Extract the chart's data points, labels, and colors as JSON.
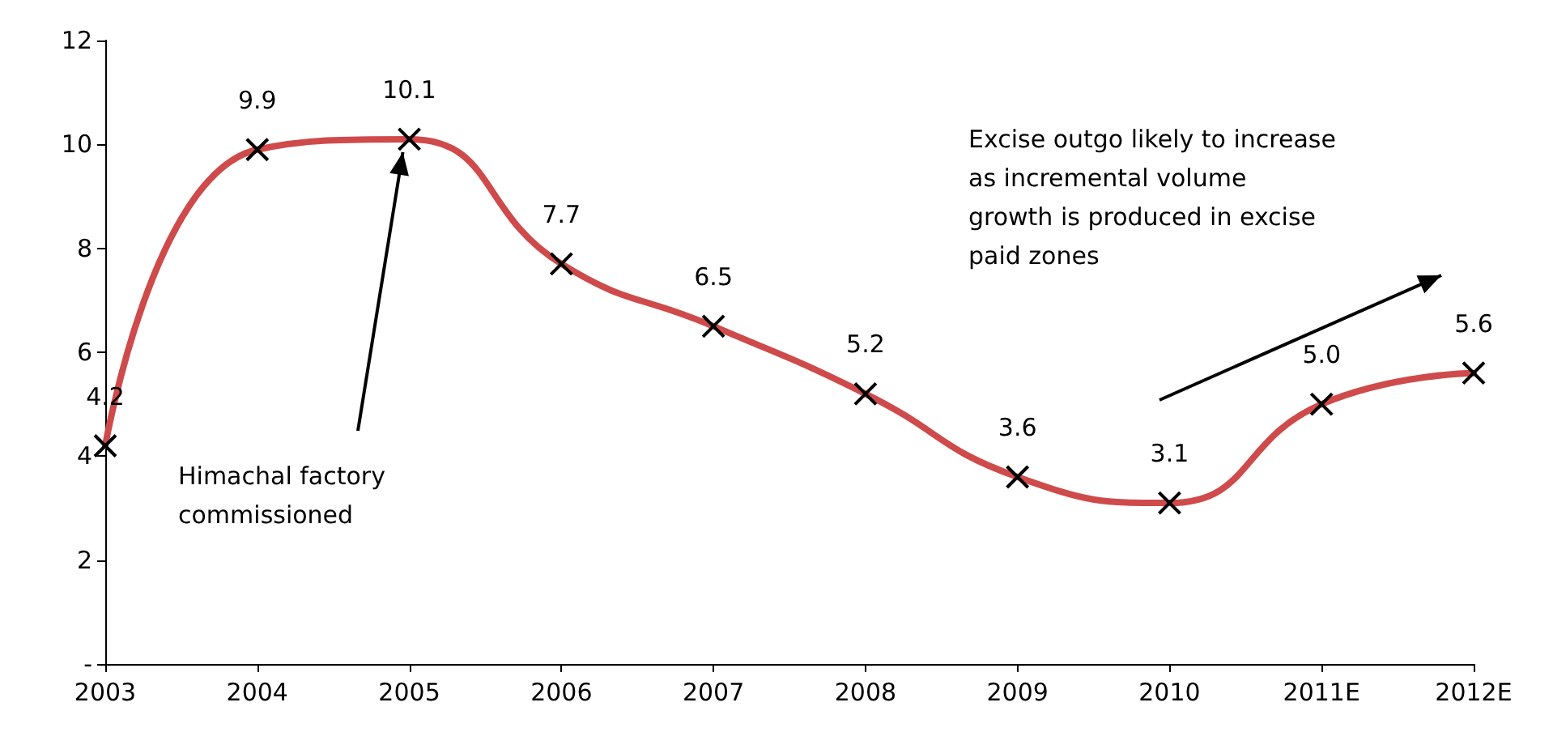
{
  "chart_data": {
    "type": "line",
    "categories": [
      "2003",
      "2004",
      "2005",
      "2006",
      "2007",
      "2008",
      "2009",
      "2010",
      "2011E",
      "2012E"
    ],
    "series": [
      {
        "color": "#cf4a4a",
        "values": [
          4.2,
          9.9,
          10.1,
          7.7,
          6.5,
          5.2,
          3.6,
          3.1,
          5.0,
          5.6
        ],
        "value_labels": [
          "4.2",
          "9.9",
          "10.1",
          "7.7",
          "6.5",
          "5.2",
          "3.6",
          "3.1",
          "5.0",
          "5.6"
        ]
      }
    ],
    "ylim": [
      0,
      12
    ],
    "yticks": [
      {
        "value": 0,
        "label": "-"
      },
      2,
      4,
      6,
      8,
      10,
      12
    ],
    "grid": false,
    "marker": "cross",
    "line_style": "solid",
    "annotations": [
      {
        "text": "Himachal factory\ncommissioned",
        "x": "2005",
        "y": 10.1
      },
      "Excise outgo likely to increase\nas incremental volume\ngrowth is produced in excise\npaid zones"
    ]
  }
}
